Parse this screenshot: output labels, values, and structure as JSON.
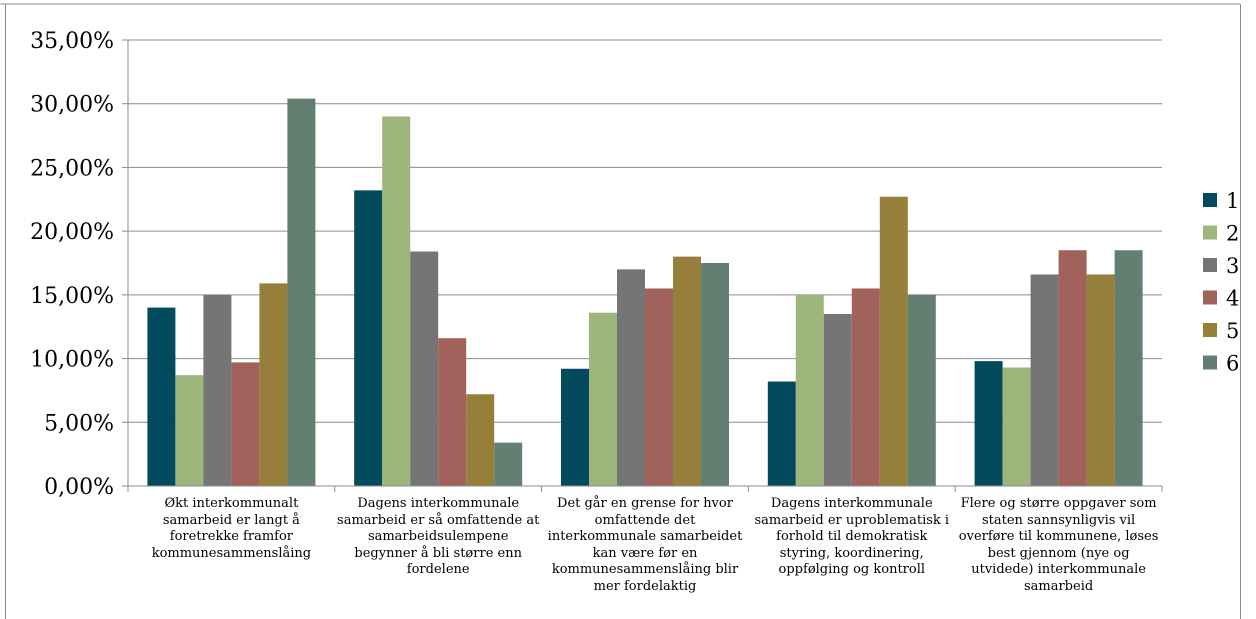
{
  "chart_data": {
    "type": "bar",
    "categories": [
      "Økt interkommunalt samarbeid er langt å foretrekke framfor kommunesammenslåing",
      "Dagens interkommunale samarbeid er så omfattende at samarbeidsulempene begynner å bli større enn fordelene",
      "Det går en grense for hvor omfattende det interkommunale samarbeidet kan være før en kommunesammenslåing blir mer fordelaktig",
      "Dagens interkommunale samarbeid er uproblematisk i forhold til demokratisk styring, koordinering, oppfølging og kontroll",
      "Flere og større oppgaver som staten sannsynligvis vil overføre til kommunene, løses best gjennom (nye og utvidede) interkommunale samarbeid"
    ],
    "series": [
      {
        "name": "1",
        "color": "#044A5E",
        "values": [
          14.0,
          23.2,
          9.2,
          8.2,
          9.8
        ]
      },
      {
        "name": "2",
        "color": "#9CB67C",
        "values": [
          8.7,
          29.0,
          13.6,
          15.0,
          9.3
        ]
      },
      {
        "name": "3",
        "color": "#777478",
        "values": [
          15.0,
          18.4,
          17.0,
          13.5,
          16.6
        ]
      },
      {
        "name": "4",
        "color": "#A0625A",
        "values": [
          9.7,
          11.6,
          15.5,
          15.5,
          18.5
        ]
      },
      {
        "name": "5",
        "color": "#957F3B",
        "values": [
          15.9,
          7.2,
          18.0,
          22.7,
          16.6
        ]
      },
      {
        "name": "6",
        "color": "#627F72",
        "values": [
          30.4,
          3.4,
          17.5,
          15.0,
          18.5
        ]
      }
    ],
    "yticks": [
      "0,00%",
      "5,00%",
      "10,00%",
      "15,00%",
      "20,00%",
      "25,00%",
      "30,00%",
      "35,00%"
    ],
    "ylim": [
      0,
      35
    ],
    "grid": true,
    "legend": "right"
  }
}
